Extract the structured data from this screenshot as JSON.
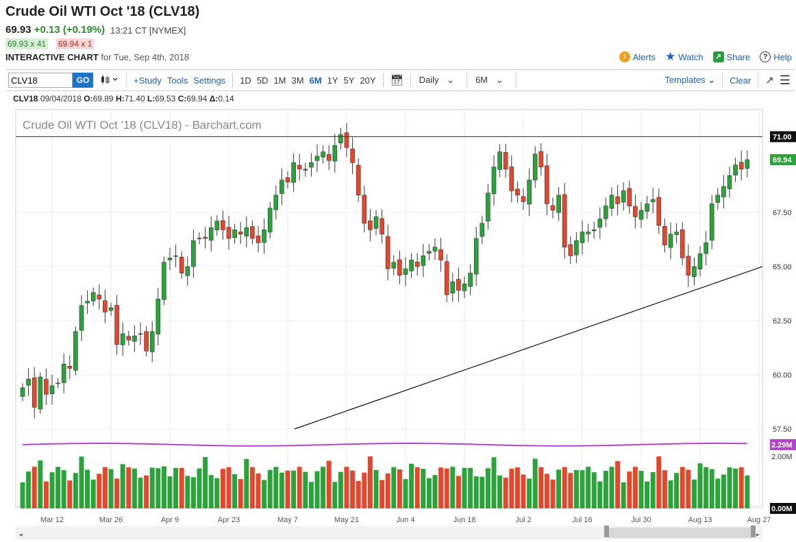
{
  "header": {
    "title": "Crude Oil WTI Oct '18 (CLV18)",
    "last": "69.93",
    "change": "+0.13 (+0.19%)",
    "time": "13:21 CT [NYMEX]",
    "bid": "69.93 x 41",
    "ask": "69.94 x 1",
    "chart_label": "INTERACTIVE CHART",
    "chart_date": "for Tue, Sep 4th, 2018"
  },
  "links": {
    "alerts": "Alerts",
    "watch": "Watch",
    "share": "Share",
    "help": "Help"
  },
  "toolbar": {
    "symbol": "CLV18",
    "go": "GO",
    "study": "+Study",
    "tools": "Tools",
    "settings": "Settings",
    "ranges": [
      "1D",
      "5D",
      "1M",
      "3M",
      "6M",
      "1Y",
      "5Y",
      "20Y"
    ],
    "active_range": "6M",
    "interval": "Daily",
    "period": "6M",
    "templates": "Templates",
    "clear": "Clear"
  },
  "ohlc": {
    "symbol": "CLV18",
    "date": "09/04/2018",
    "o_label": "O:",
    "o": "69.89",
    "h_label": "H:",
    "h": "71.40",
    "l_label": "L:",
    "l": "69.53",
    "c_label": "C:",
    "c": "69.94",
    "d_label": "Δ:",
    "d": "0.14"
  },
  "colors": {
    "up": "#2aa33a",
    "down": "#e4472c",
    "ma": "#b344c8",
    "link": "#1a62b8"
  },
  "chart_data": {
    "type": "candlestick",
    "title": "Crude Oil WTI Oct '18 (CLV18) - Barchart.com",
    "ylim": [
      57.5,
      72.25
    ],
    "y_ticks": [
      "57.50",
      "60.00",
      "62.50",
      "65.00",
      "67.50",
      "71.00"
    ],
    "x_ticks": [
      "Mar 12",
      "Mar 26",
      "Apr 9",
      "Apr 23",
      "May 7",
      "May 21",
      "Jun 4",
      "Jun 18",
      "Jul 2",
      "Jul 16",
      "Jul 30",
      "Aug 13",
      "Aug 27"
    ],
    "last_price_label": "69.94",
    "resistance_label": "71.00",
    "resistance_level": 71.0,
    "trendline": {
      "start": [
        "May 10",
        57.5
      ],
      "end": [
        "Sep 5",
        65.0
      ]
    },
    "closes": [
      59.4,
      59.8,
      58.5,
      59.9,
      59.1,
      59.5,
      59.6,
      60.5,
      60.3,
      62.0,
      63.2,
      63.4,
      63.8,
      63.5,
      62.9,
      63.1,
      61.4,
      61.9,
      61.6,
      61.8,
      61.9,
      61.1,
      62.0,
      63.5,
      65.2,
      65.4,
      65.5,
      64.7,
      65.0,
      66.2,
      66.3,
      66.3,
      66.8,
      67.1,
      66.7,
      66.3,
      66.7,
      66.5,
      66.8,
      66.3,
      66.1,
      66.7,
      67.7,
      68.3,
      69.0,
      68.9,
      69.8,
      69.5,
      69.5,
      69.8,
      70.1,
      70.3,
      69.9,
      70.6,
      71.1,
      70.5,
      69.8,
      68.3,
      67.0,
      66.7,
      67.3,
      66.5,
      64.9,
      65.2,
      64.6,
      64.9,
      65.3,
      65.0,
      65.5,
      65.7,
      65.9,
      65.3,
      63.7,
      64.3,
      63.9,
      64.2,
      64.7,
      66.3,
      67.0,
      68.4,
      69.6,
      70.3,
      69.5,
      68.5,
      68.3,
      68.0,
      69.0,
      70.2,
      69.6,
      67.9,
      67.6,
      68.3,
      65.9,
      65.5,
      66.2,
      66.6,
      66.6,
      66.7,
      67.2,
      67.8,
      68.3,
      67.9,
      68.5,
      67.8,
      67.3,
      67.6,
      67.9,
      68.1,
      66.9,
      66.0,
      66.5,
      66.6,
      65.4,
      64.6,
      65.0,
      65.6,
      66.1,
      67.9,
      68.3,
      68.7,
      69.2,
      69.7,
      69.5,
      69.94
    ],
    "volume_ma_label": "2.29M",
    "volume_ticks": [
      "2.00M",
      "0.00M"
    ]
  }
}
